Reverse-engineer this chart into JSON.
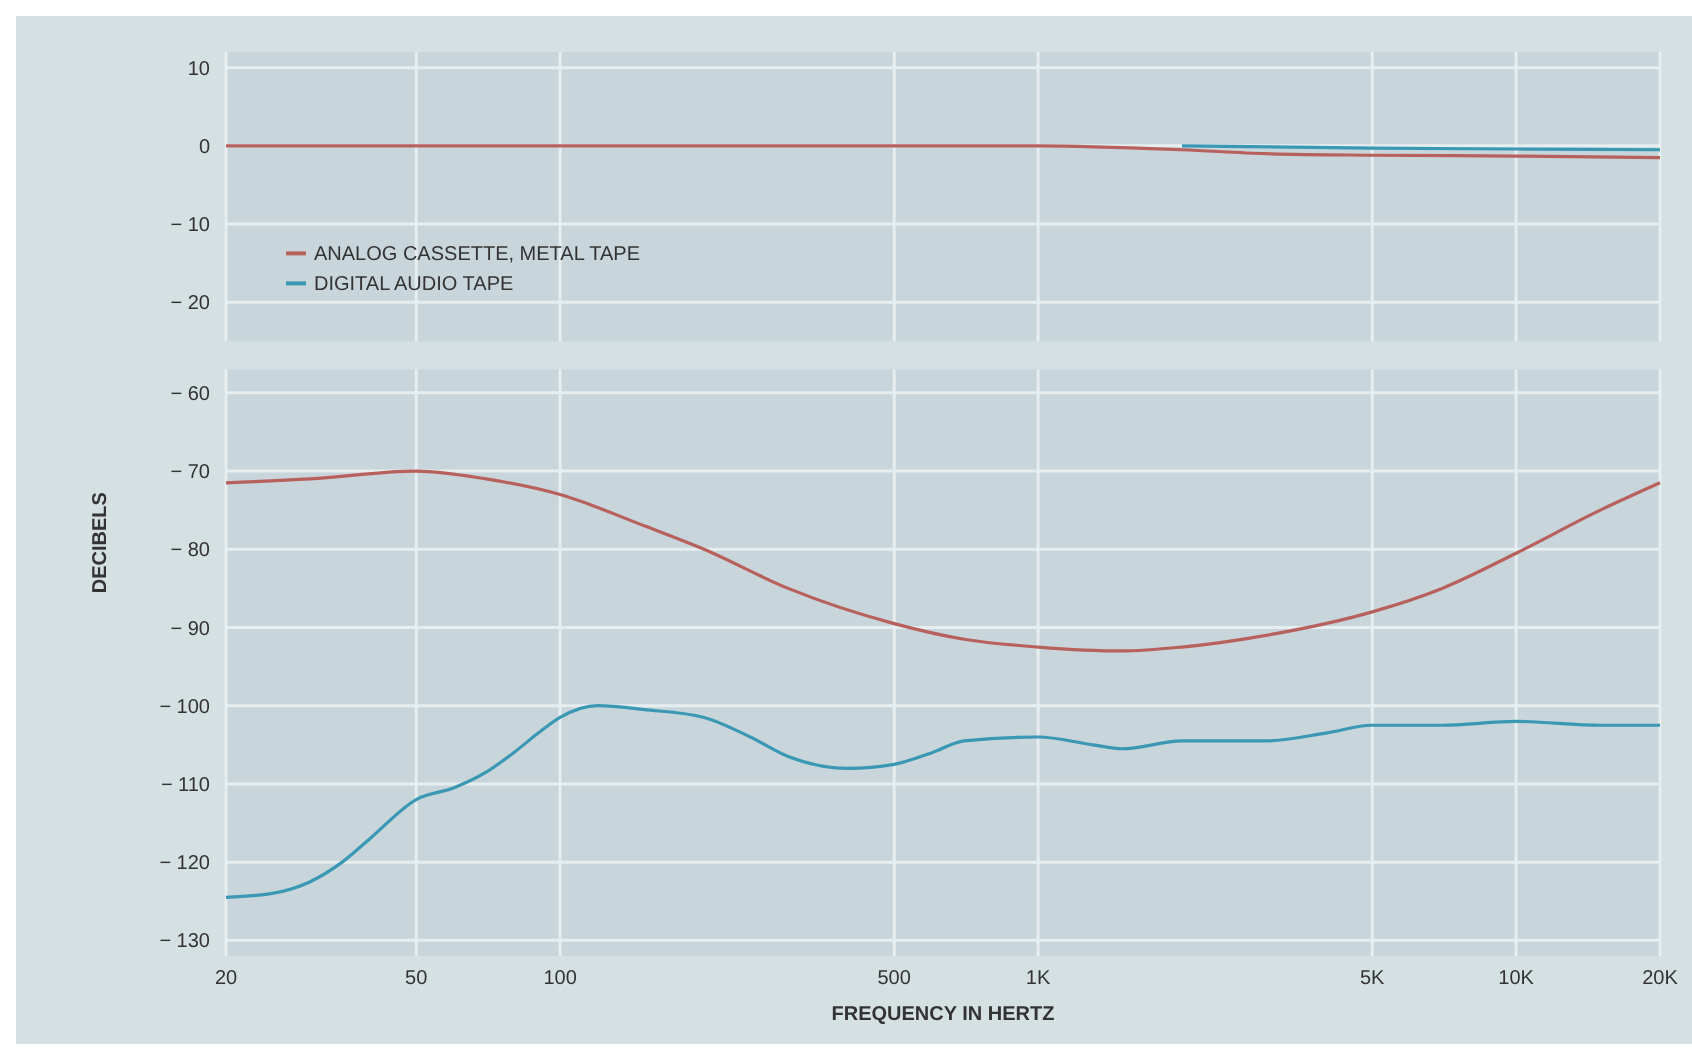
{
  "chart_data": [
    {
      "type": "line",
      "xlim": [
        20,
        20000
      ],
      "log": "x",
      "xticks": [
        20,
        50,
        100,
        500,
        1000,
        5000,
        10000,
        20000
      ],
      "ylim": [
        -25,
        12
      ],
      "yticks": [
        10,
        0,
        -10,
        -20
      ],
      "grid": true,
      "legend": "bottom left",
      "tick_labels": "y",
      "series": [
        {
          "name": "ANALOG CASSETTE, METAL TAPE",
          "color": "#b8615c",
          "x": [
            20,
            100,
            500,
            1000,
            2000,
            3000,
            5000,
            10000,
            20000
          ],
          "values": [
            0,
            0,
            0,
            0,
            -0.5,
            -1,
            -1.2,
            -1.3,
            -1.5
          ]
        },
        {
          "name": "DIGITAL AUDIO TAPE",
          "color": "#3a98b4",
          "x": [
            2000,
            5000,
            10000,
            20000
          ],
          "values": [
            0,
            -0.3,
            -0.4,
            -0.5
          ]
        }
      ]
    },
    {
      "type": "line",
      "xlim": [
        20,
        20000
      ],
      "log": "x",
      "xticks": [
        20,
        50,
        100,
        500,
        {
          "value": 1000,
          "label": "1K"
        },
        {
          "value": 5000,
          "label": "5K"
        },
        {
          "value": 10000,
          "label": "10K"
        },
        {
          "value": 20000,
          "label": "20K"
        }
      ],
      "ylim": [
        -132,
        -57
      ],
      "yticks": [
        -60,
        -70,
        -80,
        -90,
        -100,
        -110,
        -120,
        -130
      ],
      "grid": true,
      "xlabel": "FREQUENCY IN HERTZ",
      "ylabel": "DECIBELS",
      "series": [
        {
          "color": "#b8615c",
          "x": [
            20,
            30,
            50,
            70,
            100,
            150,
            200,
            300,
            500,
            700,
            1000,
            1500,
            2000,
            3000,
            5000,
            7000,
            10000,
            15000,
            20000
          ],
          "values": [
            -71.5,
            -71,
            -70,
            -71,
            -73,
            -77,
            -80,
            -85,
            -89.5,
            -91.5,
            -92.5,
            -93,
            -92.5,
            -91,
            -88,
            -85,
            -80.5,
            -75,
            -71.5
          ]
        },
        {
          "color": "#3a98b4",
          "x": [
            20,
            25,
            30,
            35,
            40,
            50,
            60,
            70,
            80,
            90,
            100,
            120,
            150,
            200,
            250,
            300,
            400,
            500,
            600,
            700,
            1000,
            1300,
            1500,
            2000,
            3000,
            4000,
            5000,
            7000,
            10000,
            15000,
            20000
          ],
          "values": [
            -124.5,
            -124,
            -122.5,
            -120,
            -117,
            -112,
            -110.5,
            -108.5,
            -106,
            -103.5,
            -101.5,
            -100,
            -100.5,
            -101.5,
            -104,
            -106.5,
            -108,
            -107.5,
            -106,
            -104.5,
            -104,
            -105,
            -105.5,
            -104.5,
            -104.5,
            -103.5,
            -102.5,
            -102.5,
            -102,
            -102.5,
            -102.5
          ]
        }
      ]
    }
  ]
}
